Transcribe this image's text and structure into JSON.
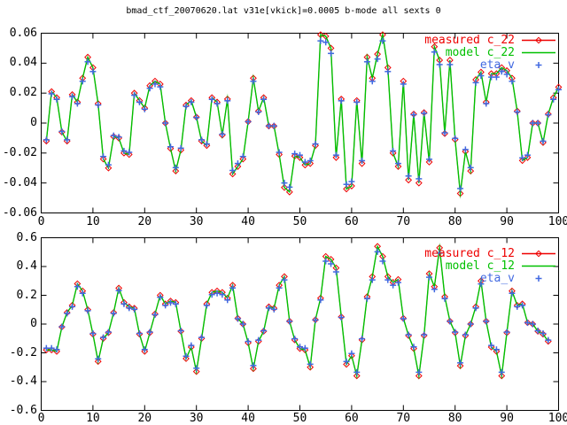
{
  "title": "bmad_ctf_20070620.lat v31e[vkick]=0.0005 b-mode all sexts 0",
  "background": "#ffffff",
  "frame_color": "#000000",
  "text_color": "#000000",
  "chart_data": [
    {
      "type": "line",
      "x_range": [
        0,
        100
      ],
      "y_range": [
        -0.06,
        0.06
      ],
      "x_ticks": [
        0,
        10,
        20,
        30,
        40,
        50,
        60,
        70,
        80,
        90,
        100
      ],
      "x_tick_labels": [
        "0",
        "10",
        "20",
        "30",
        "40",
        "50",
        "60",
        "70",
        "80",
        "90",
        "100"
      ],
      "y_ticks": [
        -0.06,
        -0.04,
        -0.02,
        0,
        0.02,
        0.04,
        0.06
      ],
      "y_tick_labels": [
        "-0.06",
        "-0.04",
        "-0.02",
        "0",
        "0.02",
        "0.04",
        "0.06"
      ],
      "grid": false,
      "legend_position": "top-right-inside",
      "x_start": 1,
      "series": [
        {
          "name": "measured c_22",
          "color": "#ee0000",
          "style": "linespoints",
          "marker": "diamond",
          "render_scale": 1.0
        },
        {
          "name": "model c_22",
          "color": "#00c000",
          "style": "lines",
          "marker": "none",
          "render_scale": 1.0
        },
        {
          "name": "eta_v",
          "color": "#4169e1",
          "style": "points",
          "marker": "plus",
          "render_scale": 0.93
        }
      ],
      "base_values": [
        -0.012,
        0.021,
        0.017,
        -0.006,
        -0.012,
        0.019,
        0.014,
        0.03,
        0.044,
        0.037,
        0.013,
        -0.024,
        -0.03,
        -0.009,
        -0.01,
        -0.02,
        -0.021,
        0.02,
        0.015,
        0.01,
        0.025,
        0.028,
        0.026,
        0.0,
        -0.017,
        -0.032,
        -0.018,
        0.012,
        0.015,
        0.004,
        -0.012,
        -0.015,
        0.017,
        0.014,
        -0.008,
        0.016,
        -0.034,
        -0.029,
        -0.024,
        0.001,
        0.03,
        0.008,
        0.017,
        -0.002,
        -0.002,
        -0.021,
        -0.043,
        -0.046,
        -0.022,
        -0.023,
        -0.028,
        -0.027,
        -0.015,
        0.059,
        0.058,
        0.05,
        -0.023,
        0.016,
        -0.044,
        -0.042,
        0.015,
        -0.027,
        0.044,
        0.03,
        0.046,
        0.059,
        0.037,
        -0.02,
        -0.029,
        0.028,
        -0.038,
        0.006,
        -0.04,
        0.007,
        -0.026,
        0.051,
        0.042,
        -0.007,
        0.042,
        -0.011,
        -0.047,
        -0.019,
        -0.032,
        0.029,
        0.034,
        0.014,
        0.033,
        0.033,
        0.037,
        0.035,
        0.03,
        0.008,
        -0.025,
        -0.023,
        0.0,
        0.0,
        -0.013,
        0.006,
        0.017,
        0.024
      ]
    },
    {
      "type": "line",
      "x_range": [
        0,
        100
      ],
      "y_range": [
        -0.6,
        0.6
      ],
      "x_ticks": [
        0,
        10,
        20,
        30,
        40,
        50,
        60,
        70,
        80,
        90,
        100
      ],
      "x_tick_labels": [
        "0",
        "10",
        "20",
        "30",
        "40",
        "50",
        "60",
        "70",
        "80",
        "90",
        "100"
      ],
      "y_ticks": [
        -0.6,
        -0.4,
        -0.2,
        0,
        0.2,
        0.4,
        0.6
      ],
      "y_tick_labels": [
        "-0.6",
        "-0.4",
        "-0.2",
        "0",
        "0.2",
        "0.4",
        "0.6"
      ],
      "grid": false,
      "legend_position": "top-right-inside",
      "x_start": 1,
      "series": [
        {
          "name": "measured c_12",
          "color": "#ee0000",
          "style": "linespoints",
          "marker": "diamond",
          "render_scale": 1.0
        },
        {
          "name": "model c_12",
          "color": "#00c000",
          "style": "lines",
          "marker": "none",
          "render_scale": 1.0
        },
        {
          "name": "eta_v",
          "color": "#4169e1",
          "style": "points",
          "marker": "plus",
          "render_scale": 0.93
        }
      ],
      "base_values": [
        -0.18,
        -0.18,
        -0.19,
        -0.02,
        0.08,
        0.13,
        0.28,
        0.23,
        0.1,
        -0.07,
        -0.26,
        -0.1,
        -0.06,
        0.08,
        0.25,
        0.15,
        0.12,
        0.11,
        -0.07,
        -0.19,
        -0.06,
        0.07,
        0.2,
        0.14,
        0.16,
        0.15,
        -0.05,
        -0.24,
        -0.16,
        -0.33,
        -0.1,
        0.14,
        0.22,
        0.23,
        0.22,
        0.18,
        0.27,
        0.04,
        0.0,
        -0.13,
        -0.31,
        -0.12,
        -0.05,
        0.12,
        0.11,
        0.27,
        0.33,
        0.02,
        -0.11,
        -0.17,
        -0.18,
        -0.3,
        0.03,
        0.18,
        0.47,
        0.45,
        0.39,
        0.05,
        -0.28,
        -0.22,
        -0.36,
        -0.11,
        0.19,
        0.33,
        0.54,
        0.47,
        0.33,
        0.29,
        0.31,
        0.04,
        -0.08,
        -0.17,
        -0.36,
        -0.08,
        0.35,
        0.26,
        0.53,
        0.19,
        0.02,
        -0.06,
        -0.29,
        -0.08,
        0.0,
        0.12,
        0.3,
        0.02,
        -0.16,
        -0.19,
        -0.36,
        -0.06,
        0.23,
        0.13,
        0.14,
        0.01,
        0.0,
        -0.05,
        -0.07,
        -0.12
      ]
    }
  ]
}
